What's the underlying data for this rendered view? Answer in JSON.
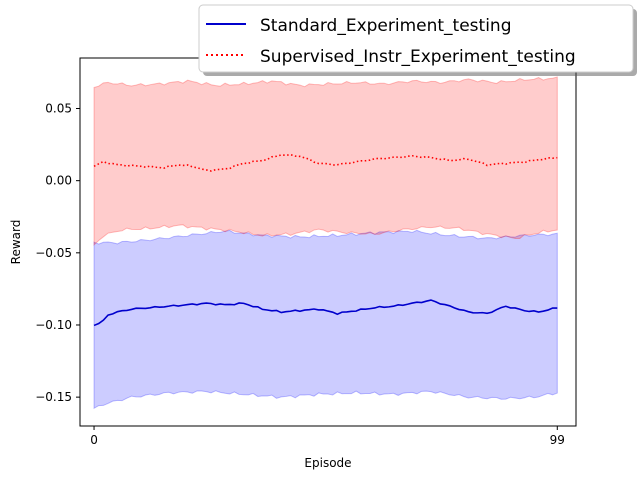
{
  "chart_data": {
    "type": "line",
    "xlabel": "Episode",
    "ylabel": "Reward",
    "xlim": [
      -3,
      103
    ],
    "ylim": [
      -0.17,
      0.085
    ],
    "x_ticks": [
      0,
      99
    ],
    "y_ticks": [
      0.05,
      0.0,
      -0.05,
      -0.1,
      -0.15
    ],
    "y_tick_labels": [
      "0.05",
      "0.00",
      "−0.05",
      "−0.10",
      "−0.15"
    ],
    "grid": false,
    "legend_position": "top-right",
    "episodes": {
      "start": 0,
      "end": 99
    },
    "series": [
      {
        "name": "Standard_Experiment_testing",
        "color": "#0000cc",
        "fill_color": "#0000ff",
        "line_style": "solid",
        "mean_anchors": [
          [
            0,
            -0.1
          ],
          [
            1,
            -0.099
          ],
          [
            2,
            -0.097
          ],
          [
            3,
            -0.093
          ],
          [
            5,
            -0.091
          ],
          [
            8,
            -0.089
          ],
          [
            12,
            -0.088
          ],
          [
            16,
            -0.087
          ],
          [
            20,
            -0.086
          ],
          [
            24,
            -0.085
          ],
          [
            28,
            -0.086
          ],
          [
            32,
            -0.085
          ],
          [
            36,
            -0.089
          ],
          [
            40,
            -0.091
          ],
          [
            44,
            -0.09
          ],
          [
            48,
            -0.089
          ],
          [
            52,
            -0.092
          ],
          [
            56,
            -0.09
          ],
          [
            60,
            -0.088
          ],
          [
            64,
            -0.087
          ],
          [
            68,
            -0.085
          ],
          [
            72,
            -0.083
          ],
          [
            76,
            -0.087
          ],
          [
            80,
            -0.091
          ],
          [
            84,
            -0.092
          ],
          [
            88,
            -0.087
          ],
          [
            92,
            -0.09
          ],
          [
            95,
            -0.091
          ],
          [
            99,
            -0.088
          ]
        ],
        "upper_anchors": [
          [
            0,
            -0.043
          ],
          [
            5,
            -0.043
          ],
          [
            12,
            -0.041
          ],
          [
            20,
            -0.038
          ],
          [
            28,
            -0.035
          ],
          [
            36,
            -0.038
          ],
          [
            44,
            -0.039
          ],
          [
            52,
            -0.038
          ],
          [
            60,
            -0.036
          ],
          [
            68,
            -0.035
          ],
          [
            76,
            -0.038
          ],
          [
            84,
            -0.04
          ],
          [
            92,
            -0.038
          ],
          [
            99,
            -0.037
          ]
        ],
        "lower_anchors": [
          [
            0,
            -0.158
          ],
          [
            2,
            -0.155
          ],
          [
            8,
            -0.15
          ],
          [
            16,
            -0.147
          ],
          [
            24,
            -0.146
          ],
          [
            32,
            -0.148
          ],
          [
            40,
            -0.15
          ],
          [
            48,
            -0.148
          ],
          [
            56,
            -0.147
          ],
          [
            64,
            -0.148
          ],
          [
            72,
            -0.146
          ],
          [
            80,
            -0.15
          ],
          [
            88,
            -0.151
          ],
          [
            94,
            -0.15
          ],
          [
            99,
            -0.147
          ]
        ]
      },
      {
        "name": "Supervised_Instr_Experiment_testing",
        "color": "#ff0000",
        "fill_color": "#ff0000",
        "line_style": "dotted",
        "mean_anchors": [
          [
            0,
            0.01
          ],
          [
            2,
            0.013
          ],
          [
            5,
            0.011
          ],
          [
            10,
            0.01
          ],
          [
            15,
            0.009
          ],
          [
            18,
            0.011
          ],
          [
            21,
            0.01
          ],
          [
            24,
            0.007
          ],
          [
            28,
            0.008
          ],
          [
            32,
            0.012
          ],
          [
            36,
            0.014
          ],
          [
            40,
            0.018
          ],
          [
            44,
            0.017
          ],
          [
            48,
            0.012
          ],
          [
            52,
            0.011
          ],
          [
            56,
            0.013
          ],
          [
            60,
            0.015
          ],
          [
            64,
            0.016
          ],
          [
            68,
            0.017
          ],
          [
            72,
            0.016
          ],
          [
            76,
            0.014
          ],
          [
            80,
            0.015
          ],
          [
            84,
            0.011
          ],
          [
            88,
            0.012
          ],
          [
            92,
            0.013
          ],
          [
            96,
            0.015
          ],
          [
            99,
            0.016
          ]
        ],
        "upper_anchors": [
          [
            0,
            0.065
          ],
          [
            3,
            0.068
          ],
          [
            8,
            0.066
          ],
          [
            14,
            0.067
          ],
          [
            20,
            0.069
          ],
          [
            26,
            0.066
          ],
          [
            32,
            0.067
          ],
          [
            38,
            0.069
          ],
          [
            44,
            0.066
          ],
          [
            50,
            0.067
          ],
          [
            56,
            0.068
          ],
          [
            62,
            0.067
          ],
          [
            68,
            0.069
          ],
          [
            74,
            0.068
          ],
          [
            80,
            0.07
          ],
          [
            86,
            0.068
          ],
          [
            92,
            0.07
          ],
          [
            99,
            0.071
          ]
        ],
        "lower_anchors": [
          [
            0,
            -0.045
          ],
          [
            2,
            -0.038
          ],
          [
            6,
            -0.034
          ],
          [
            12,
            -0.033
          ],
          [
            18,
            -0.031
          ],
          [
            24,
            -0.033
          ],
          [
            30,
            -0.035
          ],
          [
            36,
            -0.038
          ],
          [
            42,
            -0.037
          ],
          [
            48,
            -0.034
          ],
          [
            54,
            -0.036
          ],
          [
            60,
            -0.037
          ],
          [
            66,
            -0.034
          ],
          [
            72,
            -0.032
          ],
          [
            78,
            -0.033
          ],
          [
            84,
            -0.037
          ],
          [
            90,
            -0.04
          ],
          [
            95,
            -0.036
          ],
          [
            99,
            -0.034
          ]
        ]
      }
    ]
  }
}
